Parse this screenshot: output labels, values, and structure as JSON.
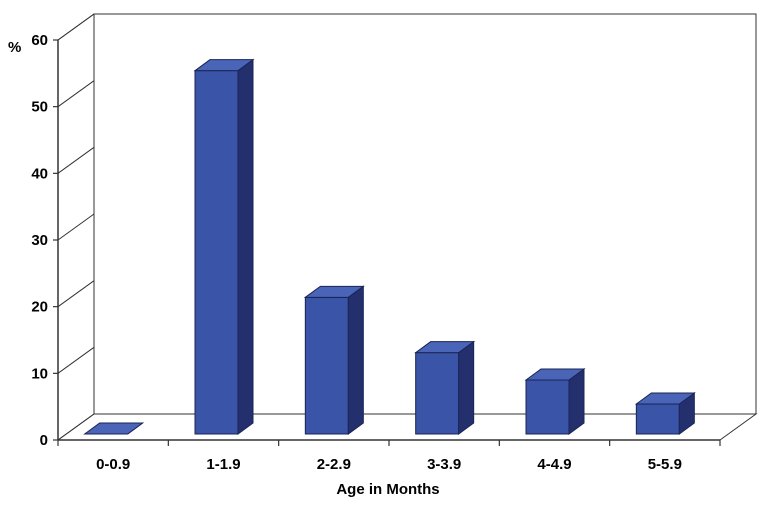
{
  "chart_data": {
    "type": "bar",
    "title": "",
    "xlabel": "Age  in Months",
    "ylabel": "%",
    "categories": [
      "0-0.9",
      "1-1.9",
      "2-2.9",
      "3-3.9",
      "4-4.9",
      "5-5.9"
    ],
    "values": [
      0,
      54.5,
      20.5,
      12.2,
      8.1,
      4.5
    ],
    "ylim": [
      0,
      60
    ],
    "yticks": [
      0,
      10,
      20,
      30,
      40,
      50,
      60
    ],
    "grid": false,
    "legend": "none",
    "bar_color": "#3A55A8",
    "bar_side_color": "#24306E",
    "bar_top_color": "#4A64B8",
    "wall_color": "#333333"
  }
}
